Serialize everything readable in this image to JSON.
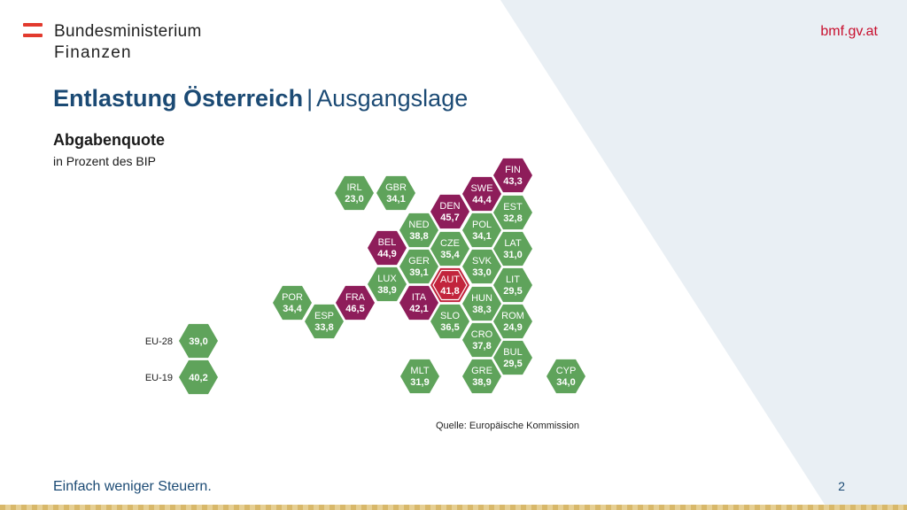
{
  "header": {
    "org_line1": "Bundesministerium",
    "org_line2": "Finanzen",
    "website": "bmf.gv.at"
  },
  "title": {
    "main": "Entlastung Österreich",
    "separator": "|",
    "sub": "Ausgangslage"
  },
  "subtitle": "Abgabenquote",
  "caption": "in Prozent des BIP",
  "colors": {
    "green": "#5fa35b",
    "magenta": "#8e1d5a",
    "highlight": "#c2243c",
    "title_blue": "#1b4a74",
    "link_red": "#c8102e",
    "bg_diagonal": "#e9eff4"
  },
  "hexmap": {
    "countries": [
      {
        "code": "FIN",
        "value": "43,3",
        "group": "high"
      },
      {
        "code": "IRL",
        "value": "23,0",
        "group": "low"
      },
      {
        "code": "GBR",
        "value": "34,1",
        "group": "low"
      },
      {
        "code": "SWE",
        "value": "44,4",
        "group": "high"
      },
      {
        "code": "DEN",
        "value": "45,7",
        "group": "high"
      },
      {
        "code": "EST",
        "value": "32,8",
        "group": "low"
      },
      {
        "code": "NED",
        "value": "38,8",
        "group": "low"
      },
      {
        "code": "POL",
        "value": "34,1",
        "group": "low"
      },
      {
        "code": "BEL",
        "value": "44,9",
        "group": "high"
      },
      {
        "code": "CZE",
        "value": "35,4",
        "group": "low"
      },
      {
        "code": "LAT",
        "value": "31,0",
        "group": "low"
      },
      {
        "code": "GER",
        "value": "39,1",
        "group": "low"
      },
      {
        "code": "SVK",
        "value": "33,0",
        "group": "low"
      },
      {
        "code": "LUX",
        "value": "38,9",
        "group": "low"
      },
      {
        "code": "AUT",
        "value": "41,8",
        "group": "focus"
      },
      {
        "code": "LIT",
        "value": "29,5",
        "group": "low"
      },
      {
        "code": "POR",
        "value": "34,4",
        "group": "low"
      },
      {
        "code": "FRA",
        "value": "46,5",
        "group": "high"
      },
      {
        "code": "ITA",
        "value": "42,1",
        "group": "high"
      },
      {
        "code": "HUN",
        "value": "38,3",
        "group": "low"
      },
      {
        "code": "ESP",
        "value": "33,8",
        "group": "low"
      },
      {
        "code": "SLO",
        "value": "36,5",
        "group": "low"
      },
      {
        "code": "ROM",
        "value": "24,9",
        "group": "low"
      },
      {
        "code": "CRO",
        "value": "37,8",
        "group": "low"
      },
      {
        "code": "BUL",
        "value": "29,5",
        "group": "low"
      },
      {
        "code": "MLT",
        "value": "31,9",
        "group": "low"
      },
      {
        "code": "GRE",
        "value": "38,9",
        "group": "low"
      },
      {
        "code": "CYP",
        "value": "34,0",
        "group": "low"
      }
    ],
    "aggregates": [
      {
        "label": "EU-28",
        "value": "39,0"
      },
      {
        "label": "EU-19",
        "value": "40,2"
      }
    ]
  },
  "source": "Quelle: Europäische Kommission",
  "footer": {
    "slogan": "Einfach weniger Steuern.",
    "page_number": "2"
  }
}
